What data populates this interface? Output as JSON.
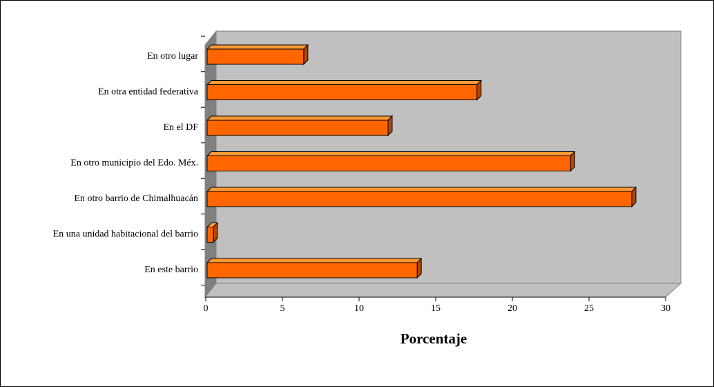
{
  "chart_data": {
    "type": "bar",
    "orientation": "horizontal",
    "x_label": "Porcentaje",
    "categories": [
      "En otro lugar",
      "En otra entidad federativa",
      "En el DF",
      "En otro municipio del Edo. Méx.",
      "En otro barrio de Chimalhuacán",
      "En una unidad habitacional del barrio",
      "En este barrio"
    ],
    "values": [
      6.3,
      17.6,
      11.8,
      23.7,
      27.7,
      0.4,
      13.7
    ],
    "color": "#FF6600",
    "xlim": [
      0,
      30
    ],
    "xticks": [
      0,
      5,
      10,
      15,
      20,
      25,
      30
    ]
  }
}
